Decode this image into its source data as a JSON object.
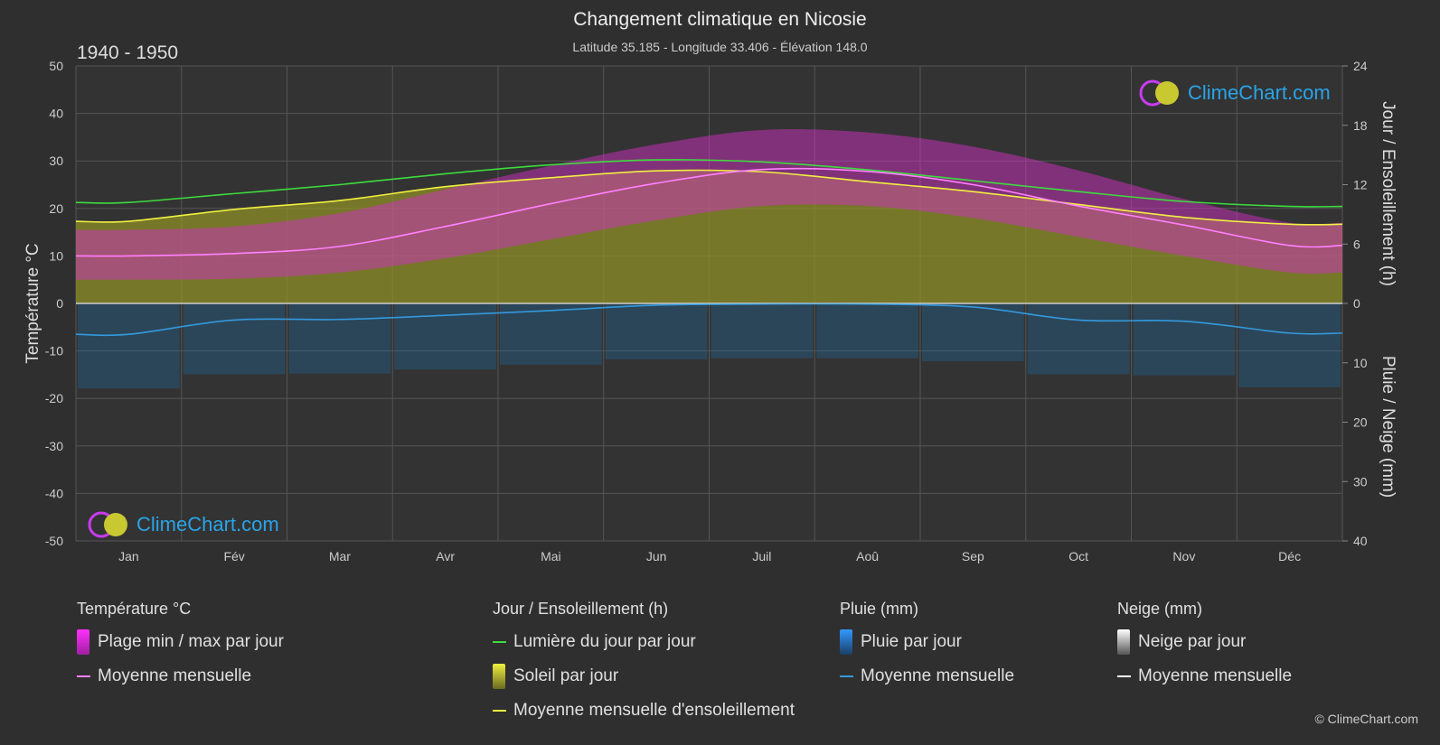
{
  "header": {
    "title": "Changement climatique en Nicosie",
    "subtitle": "Latitude 35.185 - Longitude 33.406 - Élévation 148.0",
    "period": "1940 - 1950"
  },
  "logo": {
    "text": "ClimeChart.com"
  },
  "copyright": "© ClimeChart.com",
  "colors": {
    "background": "#2f2f2f",
    "grid": "#555555",
    "daylight": "#3ddc3d",
    "sunshine_fill": "#8f8f28",
    "sunshine_mean": "#f0f040",
    "temp_range": "#d030c0",
    "temp_mean": "#ff80ff",
    "rain": "#1e6aa0",
    "rain_mean": "#3399dd",
    "snow_mean": "#ffffff"
  },
  "legend": {
    "temperature": {
      "heading": "Température °C",
      "range_label": "Plage min / max par jour",
      "mean_label": "Moyenne mensuelle"
    },
    "sun": {
      "heading": "Jour / Ensoleillement (h)",
      "daylight_label": "Lumière du jour par jour",
      "sunshine_label": "Soleil par jour",
      "sunshine_mean_label": "Moyenne mensuelle d'ensoleillement"
    },
    "rain": {
      "heading": "Pluie (mm)",
      "rain_label": "Pluie par jour",
      "mean_label": "Moyenne mensuelle"
    },
    "snow": {
      "heading": "Neige (mm)",
      "snow_label": "Neige par jour",
      "mean_label": "Moyenne mensuelle"
    }
  },
  "chart_data": {
    "type": "line",
    "categories": [
      "Jan",
      "Fév",
      "Mar",
      "Avr",
      "Mai",
      "Jun",
      "Juil",
      "Aoû",
      "Sep",
      "Oct",
      "Nov",
      "Déc"
    ],
    "axes": {
      "left": {
        "label": "Température °C",
        "min": -50,
        "max": 50,
        "ticks": [
          50,
          40,
          30,
          20,
          10,
          0,
          -10,
          -20,
          -30,
          -40,
          -50
        ]
      },
      "right_top": {
        "label": "Jour / Ensoleillement (h)",
        "min": 0,
        "max": 24,
        "ticks": [
          24,
          18,
          12,
          6,
          0
        ]
      },
      "right_bottom": {
        "label": "Pluie / Neige (mm)",
        "min": 0,
        "max": 40,
        "ticks": [
          0,
          10,
          20,
          30,
          40
        ]
      }
    },
    "grid": true,
    "series": [
      {
        "name": "Lumière du jour par jour",
        "axis": "hours",
        "values": [
          10.2,
          11.1,
          12.0,
          13.1,
          14.0,
          14.5,
          14.3,
          13.5,
          12.4,
          11.3,
          10.3,
          9.8
        ]
      },
      {
        "name": "Moyenne mensuelle d'ensoleillement",
        "axis": "hours",
        "values": [
          8.3,
          9.5,
          10.4,
          11.8,
          12.7,
          13.4,
          13.3,
          12.3,
          11.3,
          10.0,
          8.7,
          8.0
        ]
      },
      {
        "name": "Temp moyenne mensuelle",
        "axis": "temp",
        "values": [
          10.0,
          10.5,
          12.0,
          16.2,
          21.0,
          25.3,
          28.2,
          27.8,
          25.0,
          20.5,
          16.5,
          12.2
        ]
      },
      {
        "name": "Temp max moyenne",
        "axis": "temp",
        "values": [
          15.5,
          16.2,
          19.0,
          24.0,
          29.0,
          33.5,
          36.5,
          36.0,
          33.0,
          28.0,
          22.0,
          17.0
        ]
      },
      {
        "name": "Temp min moyenne",
        "axis": "temp",
        "values": [
          5.0,
          5.2,
          6.5,
          9.5,
          13.5,
          17.5,
          20.5,
          20.5,
          18.0,
          14.0,
          10.0,
          6.5
        ]
      },
      {
        "name": "Pluie moyenne mensuelle",
        "axis": "mm",
        "values": [
          5.2,
          2.8,
          2.7,
          2.0,
          1.2,
          0.3,
          0.1,
          0.1,
          0.6,
          2.8,
          3.0,
          5.0
        ]
      },
      {
        "name": "Neige moyenne mensuelle",
        "axis": "mm",
        "values": [
          0,
          0,
          0,
          0,
          0,
          0,
          0,
          0,
          0,
          0,
          0,
          0
        ]
      }
    ]
  }
}
